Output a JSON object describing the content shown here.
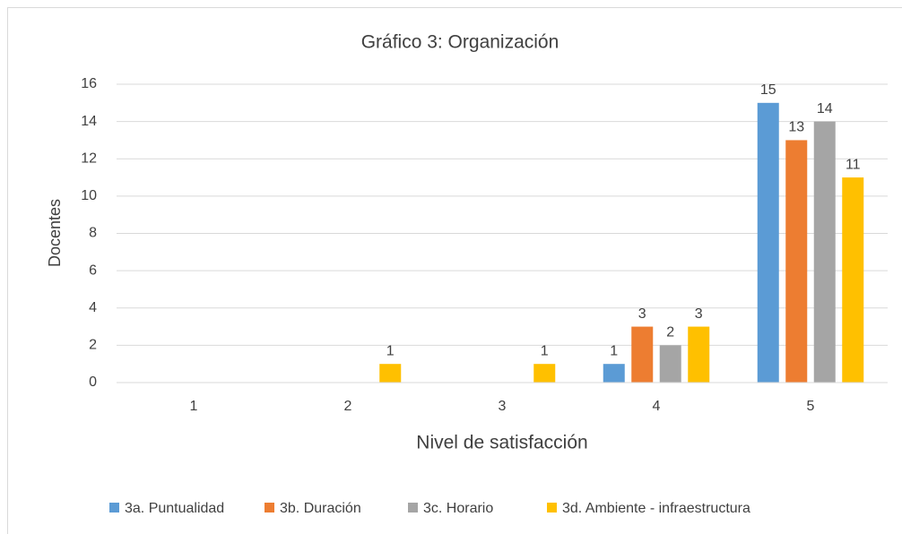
{
  "chart_data": {
    "type": "bar",
    "title": "Gráfico 3: Organización",
    "x_label": "Nivel de satisfacción",
    "y_label": "Docentes",
    "categories": [
      "1",
      "2",
      "3",
      "4",
      "5"
    ],
    "series": [
      {
        "name": "3a. Puntualidad",
        "color": "#5b9bd5",
        "values": [
          null,
          null,
          null,
          1,
          15
        ]
      },
      {
        "name": "3b. Duración",
        "color": "#ed7d31",
        "values": [
          null,
          null,
          null,
          3,
          13
        ]
      },
      {
        "name": "3c. Horario",
        "color": "#a5a5a5",
        "values": [
          null,
          null,
          null,
          2,
          14
        ]
      },
      {
        "name": "3d. Ambiente - infraestructura",
        "color": "#ffc000",
        "values": [
          null,
          1,
          1,
          3,
          11
        ]
      }
    ],
    "ylim": [
      0,
      16
    ],
    "yticks": [
      0,
      2,
      4,
      6,
      8,
      10,
      12,
      14,
      16
    ],
    "grid": true,
    "legend": "bottom"
  }
}
